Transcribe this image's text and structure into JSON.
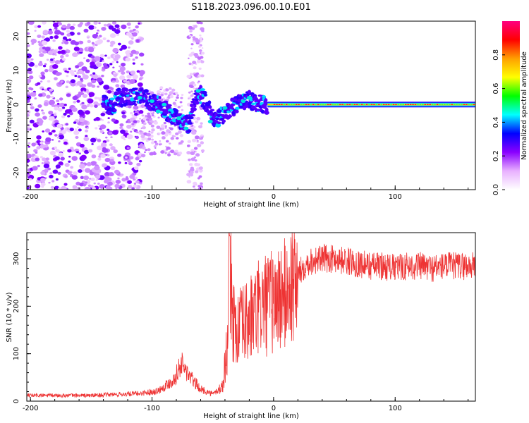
{
  "title": "S118.2023.096.00.10.E01",
  "chart_data": [
    {
      "type": "heatmap",
      "xlabel": "Height of straight line (km)",
      "ylabel": "Frequency (Hz)",
      "xlim": [
        -203,
        166
      ],
      "ylim": [
        -25,
        24.5
      ],
      "xticks": [
        -200,
        -100,
        0,
        100
      ],
      "yticks": [
        -20,
        -10,
        0,
        10,
        20
      ],
      "colorbar": {
        "label": "Normalized spectral amplitude",
        "range": [
          0,
          1
        ],
        "ticks": [
          "0.0",
          "0.2",
          "0.4",
          "0.6",
          "0.8"
        ],
        "colors": [
          "#ffffff",
          "#e8b0ff",
          "#8a00ff",
          "#0000ff",
          "#00ffff",
          "#00ff00",
          "#ffff00",
          "#ffa000",
          "#ff0000",
          "#ff0080"
        ]
      },
      "signal_track": {
        "note_points_km_hz": [
          [
            -130,
            2
          ],
          [
            -110,
            2.5
          ],
          [
            -95,
            0
          ],
          [
            -80,
            -4
          ],
          [
            -70,
            -6
          ],
          [
            -62,
            4
          ],
          [
            -55,
            0
          ],
          [
            -48,
            -5
          ],
          [
            -35,
            -1
          ],
          [
            -20,
            1.5
          ],
          [
            -10,
            0
          ],
          [
            0,
            0
          ],
          [
            166,
            0
          ]
        ]
      }
    },
    {
      "type": "line",
      "xlabel": "Height of straight line (km)",
      "ylabel": "SNR (10 * v/v)",
      "xlim": [
        -203,
        166
      ],
      "ylim": [
        0,
        355
      ],
      "xticks": [
        -200,
        -100,
        0,
        100
      ],
      "yticks": [
        0,
        100,
        200,
        300
      ],
      "series": [
        {
          "color": "#ee3333",
          "envelope_x": [
            -203,
            -150,
            -110,
            -95,
            -82,
            -76,
            -70,
            -60,
            -50,
            -42,
            -38,
            -36,
            -34,
            -30,
            -20,
            -10,
            0,
            10,
            20,
            25,
            30,
            40,
            50,
            60,
            70,
            80,
            90,
            100,
            110,
            120,
            130,
            140,
            150,
            166
          ],
          "envelope_y": [
            12,
            12,
            16,
            22,
            45,
            80,
            55,
            25,
            15,
            30,
            120,
            330,
            180,
            150,
            170,
            200,
            210,
            225,
            265,
            285,
            295,
            300,
            300,
            295,
            290,
            285,
            285,
            280,
            285,
            285,
            280,
            285,
            285,
            285
          ]
        }
      ]
    }
  ]
}
